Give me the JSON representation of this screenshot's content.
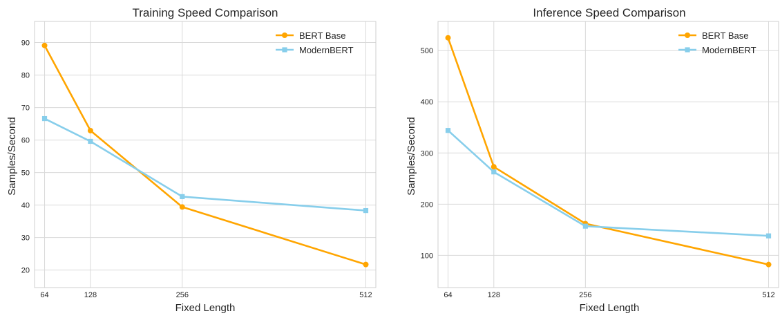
{
  "chart_data": [
    {
      "type": "line",
      "title": "Training Speed Comparison",
      "xlabel": "Fixed Length",
      "ylabel": "Samples/Second",
      "x": [
        64,
        128,
        256,
        512
      ],
      "xticks": [
        "64",
        "128",
        "256",
        "512"
      ],
      "xlim": [
        50,
        526
      ],
      "yticks": [
        20,
        30,
        40,
        50,
        60,
        70,
        80,
        90
      ],
      "ylim": [
        14.6,
        96.5
      ],
      "grid": true,
      "legend_position": "top-right",
      "series": [
        {
          "name": "BERT Base",
          "color": "#ffa500",
          "marker": "circle",
          "values": [
            89.1,
            62.9,
            39.4,
            21.7
          ]
        },
        {
          "name": "ModernBERT",
          "color": "#87ceeb",
          "marker": "square",
          "values": [
            66.6,
            59.6,
            42.6,
            38.3
          ]
        }
      ]
    },
    {
      "type": "line",
      "title": "Inference Speed Comparison",
      "xlabel": "Fixed Length",
      "ylabel": "Samples/Second",
      "x": [
        64,
        128,
        256,
        512
      ],
      "xticks": [
        "64",
        "128",
        "256",
        "512"
      ],
      "xlim": [
        50,
        526
      ],
      "yticks": [
        100,
        200,
        300,
        400,
        500
      ],
      "ylim": [
        37,
        557
      ],
      "grid": true,
      "legend_position": "top-right",
      "series": [
        {
          "name": "BERT Base",
          "color": "#ffa500",
          "marker": "circle",
          "values": [
            525,
            273,
            162,
            82
          ]
        },
        {
          "name": "ModernBERT",
          "color": "#87ceeb",
          "marker": "square",
          "values": [
            344,
            263,
            157,
            138
          ]
        }
      ]
    }
  ]
}
